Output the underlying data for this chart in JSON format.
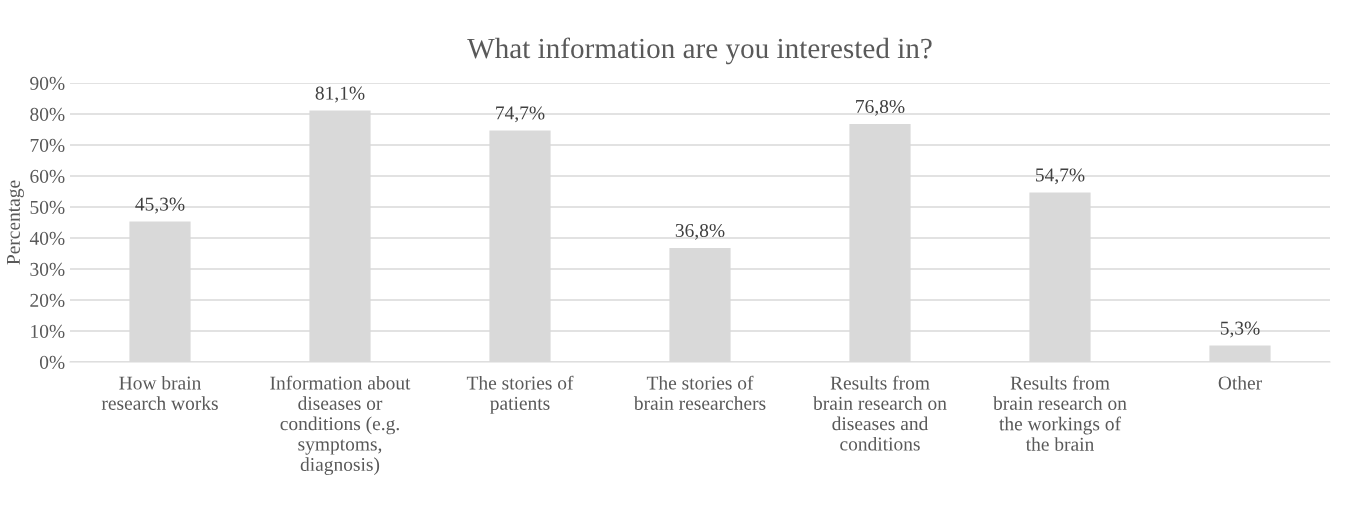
{
  "chart_data": {
    "type": "bar",
    "title": "What information are you interested in?",
    "ylabel": "Percentage",
    "categories": [
      "How brain\nresearch works",
      "Information about\ndiseases or\nconditions (e.g.\nsymptoms,\ndiagnosis)",
      "The stories of\npatients",
      "The stories of\nbrain researchers",
      "Results from\nbrain research on\ndiseases and\nconditions",
      "Results from\nbrain research on\nthe workings of\nthe brain",
      "Other"
    ],
    "values": [
      45.3,
      81.1,
      74.7,
      36.8,
      76.8,
      54.7,
      5.3
    ],
    "value_labels": [
      "45,3%",
      "81,1%",
      "74,7%",
      "36,8%",
      "76,8%",
      "54,7%",
      "5,3%"
    ],
    "color": "#d9d9d9",
    "ylim": [
      0,
      90
    ],
    "yticks": [
      {
        "value": 0,
        "label": "0%"
      },
      {
        "value": 10,
        "label": "10%"
      },
      {
        "value": 20,
        "label": "20%"
      },
      {
        "value": 30,
        "label": "30%"
      },
      {
        "value": 40,
        "label": "40%"
      },
      {
        "value": 50,
        "label": "50%"
      },
      {
        "value": 60,
        "label": "60%"
      },
      {
        "value": 70,
        "label": "70%"
      },
      {
        "value": 80,
        "label": "80%"
      },
      {
        "value": 90,
        "label": "90%"
      }
    ],
    "grid": "y"
  }
}
